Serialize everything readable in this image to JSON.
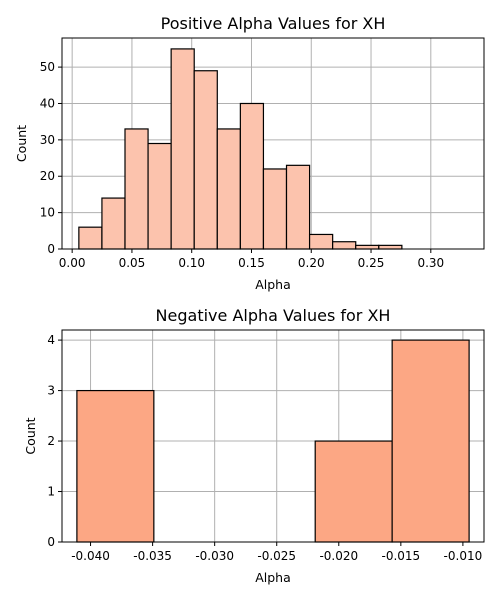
{
  "chart_data": [
    {
      "type": "bar",
      "title": "Positive Alpha Values for XH",
      "xlabel": "Alpha",
      "ylabel": "Count",
      "color": "#fcc3ad",
      "xlim": [
        -0.0085,
        0.3445
      ],
      "ylim": [
        0,
        58
      ],
      "xticks": [
        0.0,
        0.05,
        0.1,
        0.15,
        0.2,
        0.25,
        0.3
      ],
      "xtick_labels": [
        "0.00",
        "0.05",
        "0.10",
        "0.15",
        "0.20",
        "0.25",
        "0.30"
      ],
      "yticks": [
        0,
        10,
        20,
        30,
        40,
        50
      ],
      "ytick_labels": [
        "0",
        "10",
        "20",
        "30",
        "40",
        "50"
      ],
      "bins": [
        {
          "x0": 0.0056,
          "x1": 0.0249,
          "count": 6
        },
        {
          "x0": 0.0249,
          "x1": 0.0442,
          "count": 14
        },
        {
          "x0": 0.0442,
          "x1": 0.0635,
          "count": 33
        },
        {
          "x0": 0.0635,
          "x1": 0.0828,
          "count": 29
        },
        {
          "x0": 0.0828,
          "x1": 0.1021,
          "count": 55
        },
        {
          "x0": 0.1021,
          "x1": 0.1214,
          "count": 49
        },
        {
          "x0": 0.1214,
          "x1": 0.1407,
          "count": 33
        },
        {
          "x0": 0.1407,
          "x1": 0.16,
          "count": 40
        },
        {
          "x0": 0.16,
          "x1": 0.1793,
          "count": 22
        },
        {
          "x0": 0.1793,
          "x1": 0.1986,
          "count": 23
        },
        {
          "x0": 0.1986,
          "x1": 0.2179,
          "count": 4
        },
        {
          "x0": 0.2179,
          "x1": 0.2372,
          "count": 2
        },
        {
          "x0": 0.2372,
          "x1": 0.2565,
          "count": 1
        },
        {
          "x0": 0.2565,
          "x1": 0.2758,
          "count": 1
        }
      ],
      "grid": true
    },
    {
      "type": "bar",
      "title": "Negative Alpha Values for XH",
      "xlabel": "Alpha",
      "ylabel": "Count",
      "color": "#fca784",
      "xlim": [
        -0.0423,
        -0.0083
      ],
      "ylim": [
        0,
        4.2
      ],
      "xticks": [
        -0.04,
        -0.035,
        -0.03,
        -0.025,
        -0.02,
        -0.015,
        -0.01
      ],
      "xtick_labels": [
        "-0.040",
        "-0.035",
        "-0.030",
        "-0.025",
        "-0.020",
        "-0.015",
        "-0.010"
      ],
      "yticks": [
        0,
        1,
        2,
        3,
        4
      ],
      "ytick_labels": [
        "0",
        "1",
        "2",
        "3",
        "4"
      ],
      "bins": [
        {
          "x0": -0.0411,
          "x1": -0.0349,
          "count": 3
        },
        {
          "x0": -0.0349,
          "x1": -0.0287,
          "count": 0
        },
        {
          "x0": -0.0287,
          "x1": -0.0219,
          "count": 0
        },
        {
          "x0": -0.0219,
          "x1": -0.0157,
          "count": 2
        },
        {
          "x0": -0.0157,
          "x1": -0.0095,
          "count": 4
        }
      ],
      "grid": true
    }
  ]
}
